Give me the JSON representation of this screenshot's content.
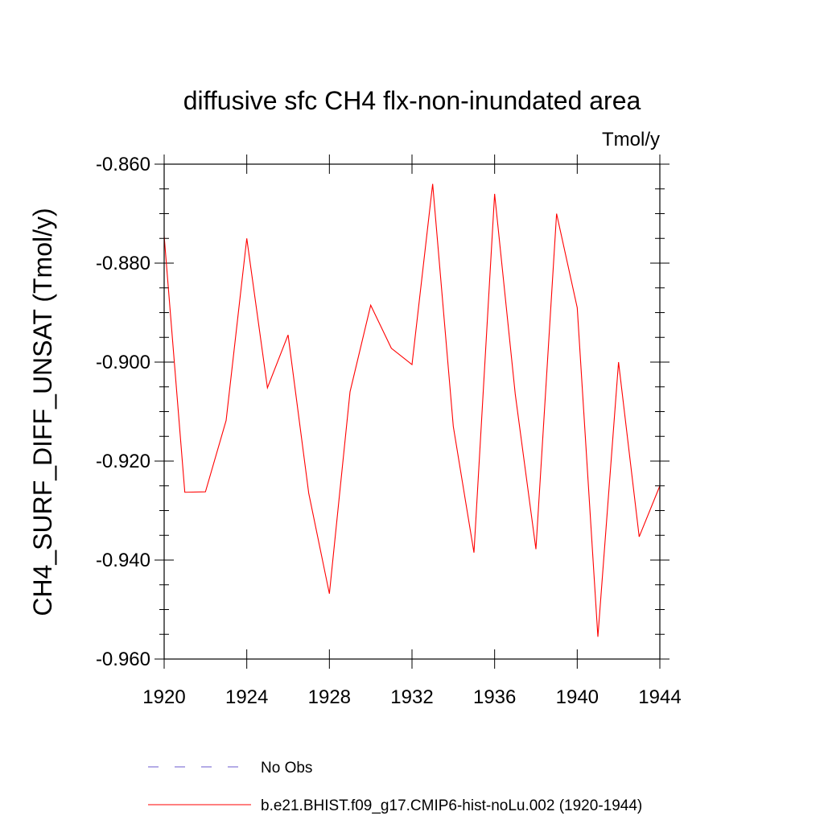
{
  "chart_data": {
    "type": "line",
    "title": "diffusive sfc CH4 flx-non-inundated area",
    "units_label": "Tmol/y",
    "ylabel": "CH4_SURF_DIFF_UNSAT  (Tmol/y)",
    "xlabel": "",
    "xlim": [
      1920,
      1944
    ],
    "ylim": [
      -0.96,
      -0.86
    ],
    "x_ticks": [
      1920,
      1924,
      1928,
      1932,
      1936,
      1940,
      1944
    ],
    "x_tick_labels": [
      "1920",
      "1924",
      "1928",
      "1932",
      "1936",
      "1940",
      "1944"
    ],
    "y_ticks": [
      -0.86,
      -0.88,
      -0.9,
      -0.92,
      -0.94,
      -0.96
    ],
    "y_tick_labels": [
      "-0.860",
      "-0.880",
      "-0.900",
      "-0.920",
      "-0.940",
      "-0.960"
    ],
    "grid": false,
    "legend_position": "bottom",
    "legend": [
      {
        "name": "No Obs",
        "color": "#6a5acd",
        "style": "dashed"
      },
      {
        "name": "b.e21.BHIST.f09_g17.CMIP6-hist-noLu.002 (1920-1944)",
        "color": "#ff0000",
        "style": "solid"
      }
    ],
    "series": [
      {
        "name": "b.e21.BHIST.f09_g17.CMIP6-hist-noLu.002 (1920-1944)",
        "color": "#ff0000",
        "x": [
          1920,
          1921,
          1922,
          1923,
          1924,
          1925,
          1926,
          1927,
          1928,
          1929,
          1930,
          1931,
          1932,
          1933,
          1934,
          1935,
          1936,
          1937,
          1938,
          1939,
          1940,
          1941,
          1942,
          1943,
          1944
        ],
        "values": [
          -0.8745,
          -0.9263,
          -0.9262,
          -0.9118,
          -0.875,
          -0.9052,
          -0.8945,
          -0.9265,
          -0.9468,
          -0.906,
          -0.8885,
          -0.8972,
          -0.9005,
          -0.864,
          -0.913,
          -0.9385,
          -0.866,
          -0.9065,
          -0.9378,
          -0.87,
          -0.889,
          -0.9555,
          -0.9,
          -0.9353,
          -0.925
        ]
      }
    ]
  }
}
